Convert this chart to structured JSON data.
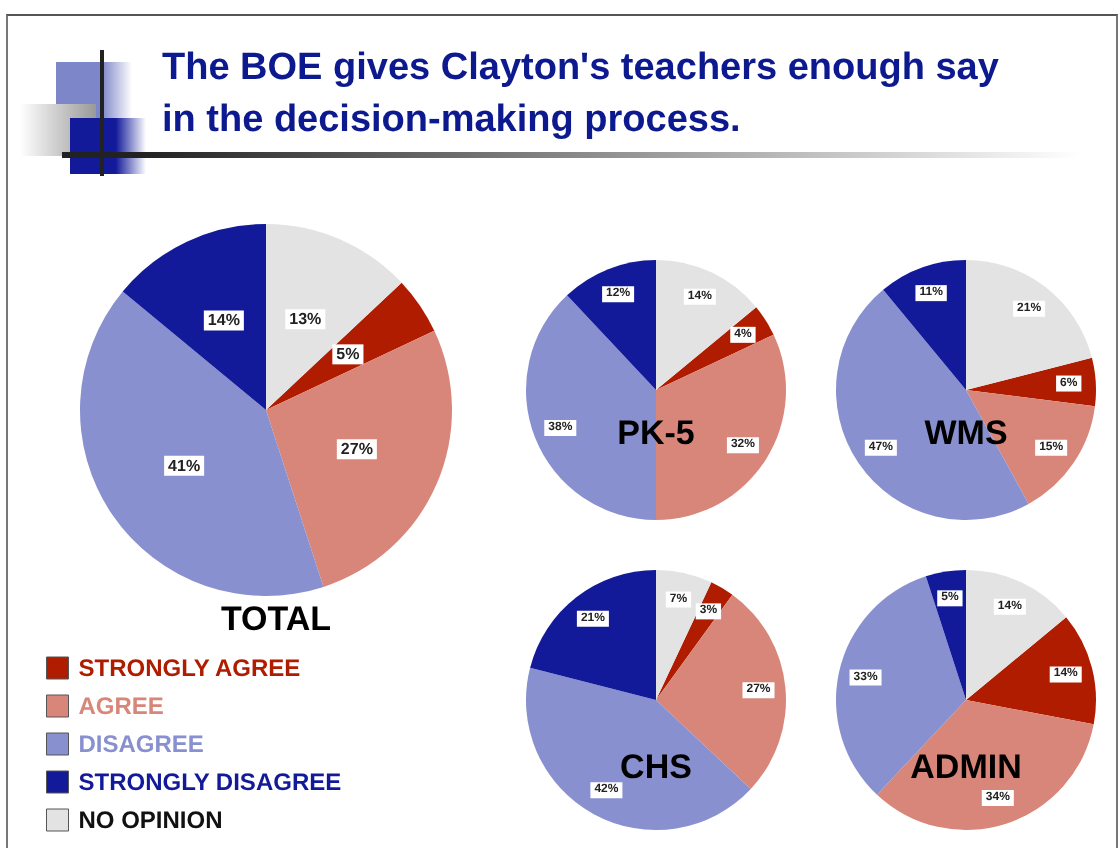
{
  "chart_data": [
    {
      "type": "pie",
      "title": "The BOE gives Clayton's teachers enough say in the decision-making process.",
      "subtitle": "TOTAL",
      "legend": "bottom left",
      "categories": [
        "STRONGLY AGREE",
        "AGREE",
        "DISAGREE",
        "STRONGLY DISAGREE",
        "NO OPINION"
      ],
      "colors": [
        "#b01c00",
        "#d9867a",
        "#8890cf",
        "#121a9a",
        "#e3e3e3"
      ],
      "values": [
        5,
        27,
        41,
        14,
        13
      ],
      "value_labels": [
        "5%",
        "27%",
        "41%",
        "14%",
        "13%"
      ]
    },
    {
      "type": "pie",
      "title": "PK-5",
      "categories": [
        null,
        null,
        null,
        null,
        null
      ],
      "colors": [
        "#b01c00",
        "#d9867a",
        "#8890cf",
        "#121a9a",
        "#e3e3e3"
      ],
      "values": [
        4,
        32,
        38,
        12,
        14
      ],
      "value_labels": [
        "4%",
        "32%",
        "38%",
        "12%",
        "14%"
      ]
    },
    {
      "type": "pie",
      "title": "WMS",
      "categories": [
        null,
        null,
        null,
        null,
        null
      ],
      "colors": [
        "#b01c00",
        "#d9867a",
        "#8890cf",
        "#121a9a",
        "#e3e3e3"
      ],
      "values": [
        6,
        15,
        47,
        11,
        21
      ],
      "value_labels": [
        "6%",
        "15%",
        "47%",
        "11%",
        "21%"
      ]
    },
    {
      "type": "pie",
      "title": "CHS",
      "categories": [
        null,
        null,
        null,
        null,
        null
      ],
      "colors": [
        "#b01c00",
        "#d9867a",
        "#8890cf",
        "#121a9a",
        "#e3e3e3"
      ],
      "values": [
        3,
        27,
        42,
        21,
        7
      ],
      "value_labels": [
        "3%",
        "27%",
        "42%",
        "21%",
        "7%"
      ]
    },
    {
      "type": "pie",
      "title": "ADMIN",
      "categories": [
        null,
        null,
        null,
        null,
        null
      ],
      "colors": [
        "#b01c00",
        "#d9867a",
        "#8890cf",
        "#121a9a",
        "#e3e3e3"
      ],
      "values": [
        14,
        34,
        33,
        5,
        14
      ],
      "value_labels": [
        "14%",
        "34%",
        "33%",
        "5%",
        "14%"
      ]
    }
  ]
}
